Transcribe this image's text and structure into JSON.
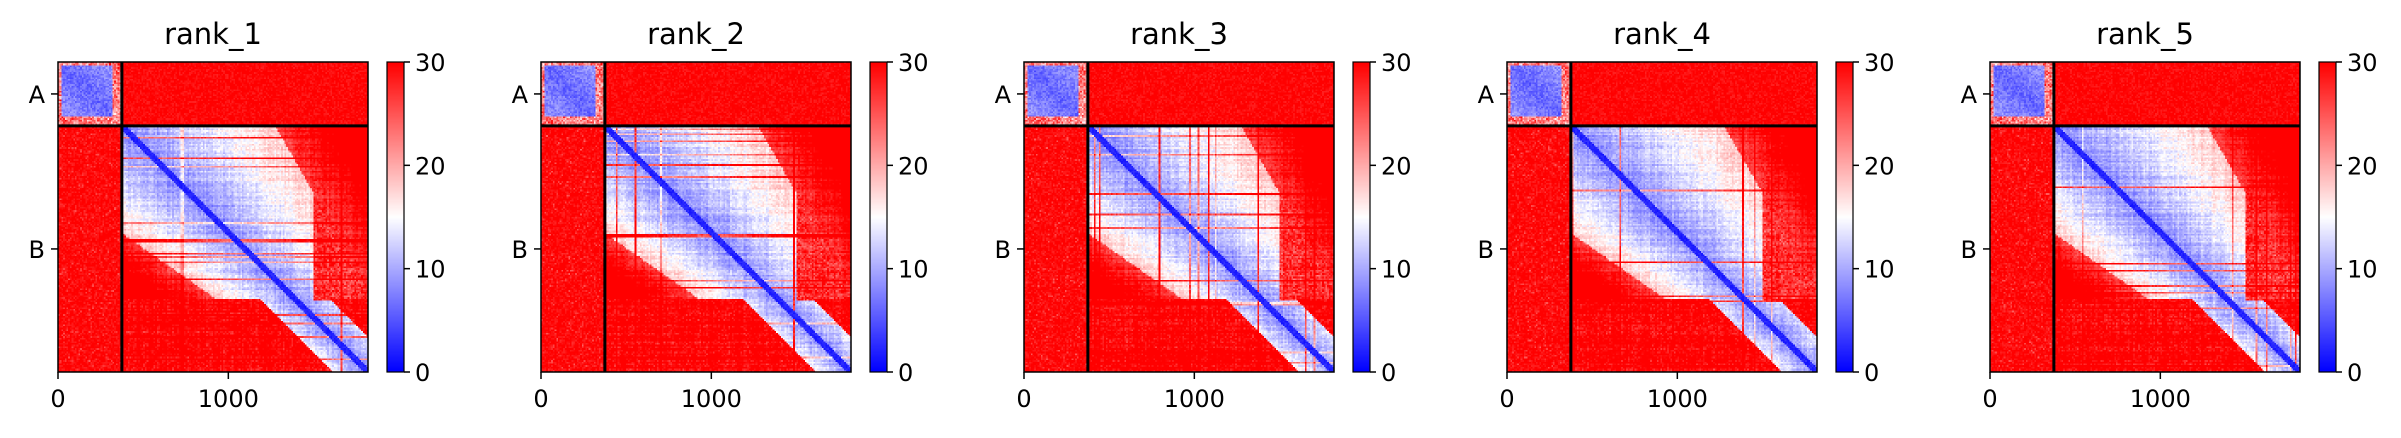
{
  "chart_data": {
    "type": "heatmap",
    "description": "Predicted aligned error (PAE) matrices for 5 ranked models; chains A and B",
    "colormap": {
      "name": "bwr",
      "low": "#0000ff",
      "mid": "#ffffff",
      "high": "#ff0000"
    },
    "vmin": 0,
    "vmax": 30,
    "colorbar_ticks": [
      "0",
      "10",
      "20",
      "30"
    ],
    "x_ticks": [
      {
        "value": 0,
        "label": "0"
      },
      {
        "value": 1000,
        "label": "1000"
      }
    ],
    "xlim": [
      0,
      1820
    ],
    "ylim": [
      1820,
      0
    ],
    "chains": [
      {
        "label": "A",
        "start": 0,
        "end": 375
      },
      {
        "label": "B",
        "start": 375,
        "end": 1820
      }
    ],
    "panels": [
      {
        "title": "rank_1",
        "variant": 1
      },
      {
        "title": "rank_2",
        "variant": 2
      },
      {
        "title": "rank_3",
        "variant": 3
      },
      {
        "title": "rank_4",
        "variant": 4
      },
      {
        "title": "rank_5",
        "variant": 5
      }
    ]
  }
}
